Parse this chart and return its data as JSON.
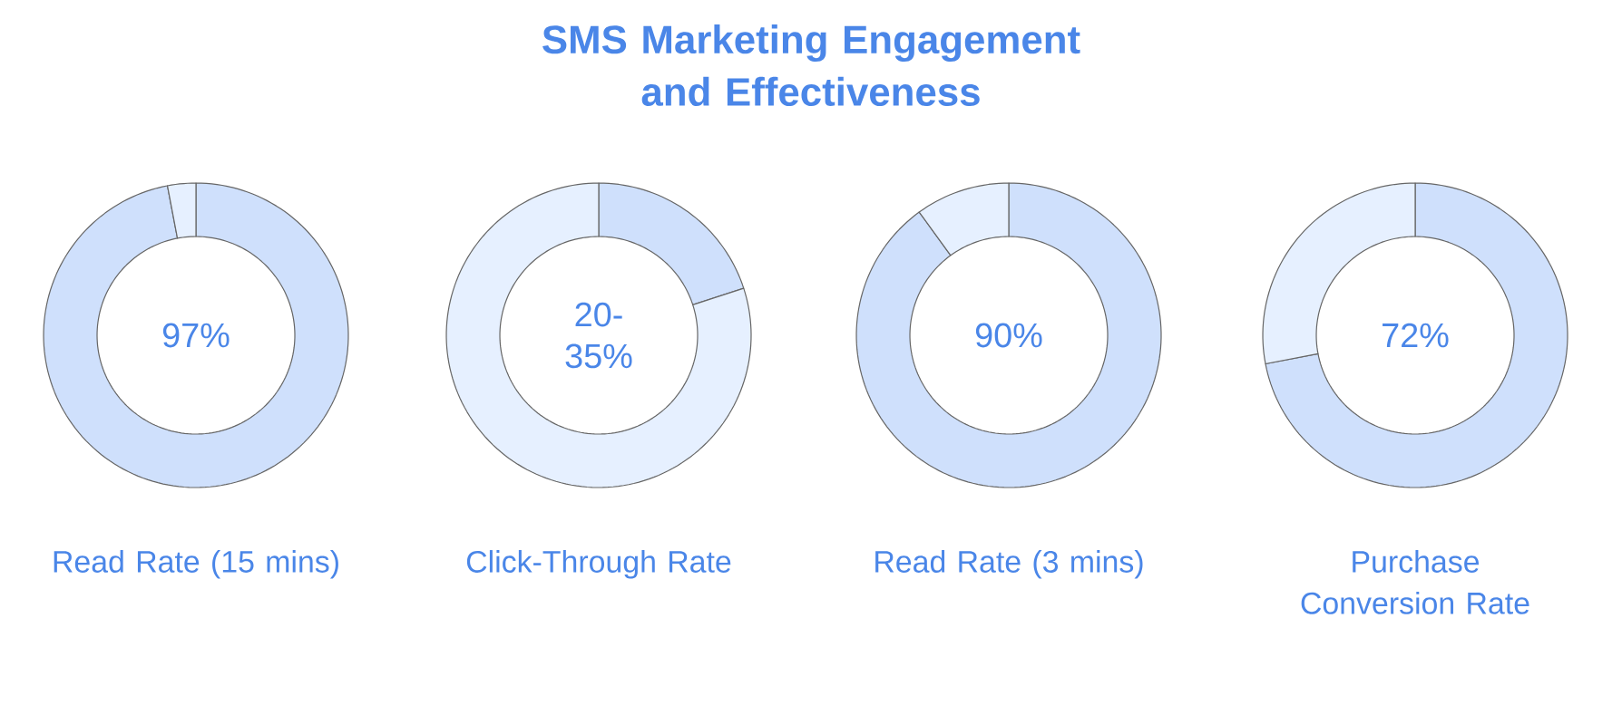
{
  "chart_data": [
    {
      "type": "donut",
      "title": "SMS Marketing Engagement and Effectiveness",
      "categories": [
        null,
        null
      ],
      "values": [
        97,
        3
      ],
      "colors": [
        "#cfe0fc",
        "#e6f0ff"
      ],
      "annotations": [
        "97%"
      ],
      "xlabel": "Read Rate (15 mins)"
    },
    {
      "type": "donut",
      "categories": [
        null,
        null
      ],
      "values": [
        20,
        80
      ],
      "colors": [
        "#cfe0fc",
        "#e6f0ff"
      ],
      "annotations": [
        "20-35%"
      ],
      "xlabel": "Click-Through Rate"
    },
    {
      "type": "donut",
      "categories": [
        null,
        null
      ],
      "values": [
        90,
        10
      ],
      "colors": [
        "#cfe0fc",
        "#e6f0ff"
      ],
      "annotations": [
        "90%"
      ],
      "xlabel": "Read Rate (3 mins)"
    },
    {
      "type": "donut",
      "categories": [
        null,
        null
      ],
      "values": [
        72,
        28
      ],
      "colors": [
        "#cfe0fc",
        "#e6f0ff"
      ],
      "annotations": [
        "72%"
      ],
      "xlabel": "Purchase Conversion Rate"
    }
  ]
}
